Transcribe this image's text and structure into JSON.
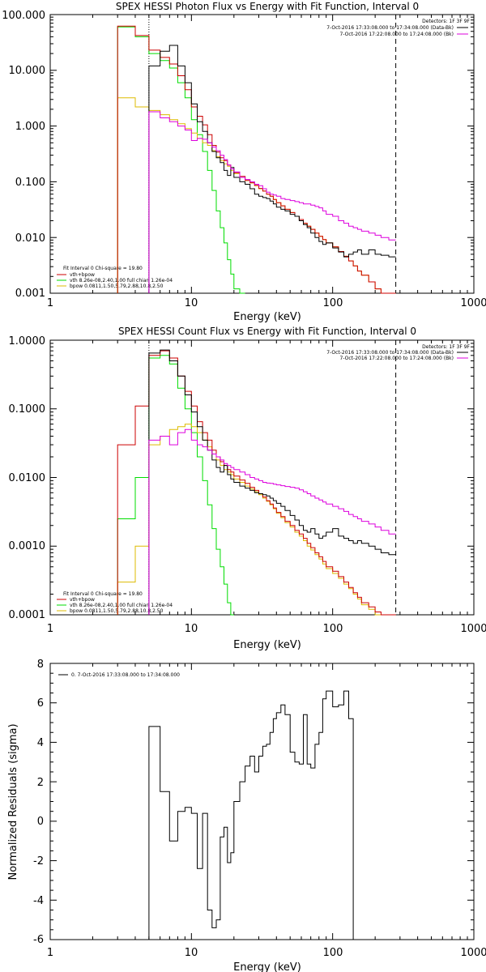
{
  "colors": {
    "total": "#cc0000",
    "vth": "#00dd00",
    "bpow": "#ddbb00",
    "data": "#000000",
    "bk": "#dd00dd",
    "frame": "#000000"
  },
  "chart_data": [
    {
      "type": "line",
      "title": "SPEX HESSI Photon Flux vs Energy with Fit Function, Interval 0",
      "xlabel": "Energy (keV)",
      "ylabel": "",
      "xscale": "log",
      "yscale": "log",
      "xlim": [
        1,
        1000
      ],
      "ylim": [
        0.001,
        100
      ],
      "xticks": [
        "1",
        "10",
        "100",
        "1000"
      ],
      "yticks": [
        "0.001",
        "0.010",
        "0.100",
        "1.000",
        "10.000",
        "100.000"
      ],
      "vlines": [
        {
          "x": 5,
          "style": "dotted"
        },
        {
          "x": 280,
          "style": "dashed"
        }
      ],
      "header_lines": [
        "Detectors: 1F 3F 9F",
        "7-Oct-2016 17:33:08.000 to 17:34:08.000 (Data-Bk)",
        "7-Oct-2016 17:22:08.000 to 17:24:08.000 (Bk)"
      ],
      "header_swatches": [
        "data",
        "bk"
      ],
      "legend": [
        "Fit Interval 0   Chi-square = 19.80",
        "vth+bpow",
        "vth 8.26e-08,2.40,1.00   full chian 1.26e-04",
        "bpow 0.0811,1.50,5.79,2.88,10.8,2.50"
      ],
      "legend_colors": [
        "none",
        "total",
        "vth",
        "bpow"
      ],
      "edges": [
        3,
        4,
        5,
        6,
        7,
        8,
        9,
        10,
        11,
        12,
        13,
        14,
        15,
        16,
        17,
        18,
        19,
        20,
        22,
        24,
        26,
        28,
        30,
        32,
        34,
        36,
        38,
        40,
        43,
        46,
        50,
        54,
        58,
        62,
        66,
        70,
        75,
        80,
        85,
        90,
        100,
        110,
        120,
        130,
        140,
        150,
        160,
        180,
        200,
        220,
        250,
        280
      ],
      "series": [
        {
          "key": "vth",
          "name": "vth",
          "xstart": 3,
          "values": [
            60,
            40,
            20,
            15,
            11,
            6,
            3.2,
            1.3,
            0.7,
            0.35,
            0.16,
            0.07,
            0.03,
            0.015,
            0.008,
            0.004,
            0.0022,
            0.0012,
            0.001
          ]
        },
        {
          "key": "bpow",
          "name": "bpow",
          "xstart": 3,
          "values": [
            3.2,
            2.2,
            1.9,
            1.6,
            1.3,
            1.1,
            0.9,
            0.75,
            0.6,
            0.5,
            0.45,
            0.36,
            0.28,
            0.24,
            0.21,
            0.19,
            0.16,
            0.14,
            0.12,
            0.105,
            0.095,
            0.085,
            0.075,
            0.068,
            0.06,
            0.055,
            0.048,
            0.042,
            0.037,
            0.032,
            0.028,
            0.024,
            0.021,
            0.018,
            0.016,
            0.014,
            0.012,
            0.0105,
            0.0092,
            0.008,
            0.0068,
            0.0056,
            0.0046,
            0.0038,
            0.0031,
            0.0025,
            0.0021,
            0.0016,
            0.0012,
            0.001,
            0.0009
          ]
        },
        {
          "key": "total",
          "name": "vth+bpow",
          "xstart": 3,
          "values": [
            62,
            42,
            23,
            17,
            13,
            8,
            4.5,
            2.2,
            1.5,
            1.05,
            0.7,
            0.45,
            0.34,
            0.27,
            0.24,
            0.2,
            0.17,
            0.145,
            0.125,
            0.106,
            0.096,
            0.086,
            0.076,
            0.068,
            0.06,
            0.055,
            0.048,
            0.042,
            0.037,
            0.032,
            0.028,
            0.024,
            0.021,
            0.018,
            0.016,
            0.014,
            0.012,
            0.0105,
            0.0092,
            0.008,
            0.0068,
            0.0056,
            0.0046,
            0.0038,
            0.0031,
            0.0025,
            0.0021,
            0.0016,
            0.0012,
            0.001,
            0.0009
          ]
        },
        {
          "key": "data",
          "name": "Data-Bk",
          "xstart": 5,
          "values": [
            12,
            22,
            28,
            12,
            6,
            2.5,
            1.2,
            0.8,
            0.5,
            0.35,
            0.27,
            0.22,
            0.16,
            0.13,
            0.18,
            0.12,
            0.1,
            0.09,
            0.075,
            0.06,
            0.055,
            0.052,
            0.05,
            0.045,
            0.04,
            0.035,
            0.032,
            0.03,
            0.026,
            0.024,
            0.02,
            0.017,
            0.015,
            0.012,
            0.01,
            0.0085,
            0.0075,
            0.008,
            0.0065,
            0.0055,
            0.0045,
            0.005,
            0.0055,
            0.006,
            0.005,
            0.006,
            0.005,
            0.0048,
            0.0045,
            0.004
          ]
        },
        {
          "key": "bk",
          "name": "Bk",
          "xstart": 5,
          "values": [
            1.8,
            1.4,
            1.2,
            1.0,
            0.85,
            0.55,
            0.6,
            0.58,
            0.5,
            0.42,
            0.36,
            0.3,
            0.25,
            0.2,
            0.17,
            0.15,
            0.12,
            0.11,
            0.1,
            0.09,
            0.085,
            0.075,
            0.065,
            0.06,
            0.058,
            0.055,
            0.05,
            0.048,
            0.046,
            0.044,
            0.042,
            0.04,
            0.04,
            0.038,
            0.036,
            0.034,
            0.03,
            0.026,
            0.024,
            0.02,
            0.018,
            0.016,
            0.015,
            0.014,
            0.013,
            0.012,
            0.011,
            0.01,
            0.009,
            0.008
          ]
        }
      ]
    },
    {
      "type": "line",
      "title": "SPEX HESSI Count Flux vs Energy with Fit Function, Interval 0",
      "xlabel": "Energy (keV)",
      "ylabel": "",
      "xscale": "log",
      "yscale": "log",
      "xlim": [
        1,
        1000
      ],
      "ylim": [
        0.0001,
        1
      ],
      "xticks": [
        "1",
        "10",
        "100",
        "1000"
      ],
      "yticks": [
        "0.0001",
        "0.0010",
        "0.0100",
        "0.1000",
        "1.0000"
      ],
      "vlines": [
        {
          "x": 5,
          "style": "dotted"
        },
        {
          "x": 280,
          "style": "dashed"
        }
      ],
      "header_lines": [
        "Detectors: 1F 3F 9F",
        "7-Oct-2016 17:33:08.000 to 17:34:08.000 (Data-Bk)",
        "7-Oct-2016 17:22:08.000 to 17:24:08.000 (Bk)"
      ],
      "header_swatches": [
        "data",
        "bk"
      ],
      "legend": [
        "Fit Interval 0   Chi-square = 19.80",
        "vth+bpow",
        "vth 8.26e-08,2.40,1.00   full chian 1.26e-04",
        "bpow 0.0811,1.50,5.79,2.88,10.8,2.50"
      ],
      "legend_colors": [
        "none",
        "total",
        "vth",
        "bpow"
      ],
      "edges": [
        3,
        4,
        5,
        6,
        7,
        8,
        9,
        10,
        11,
        12,
        13,
        14,
        15,
        16,
        17,
        18,
        19,
        20,
        22,
        24,
        26,
        28,
        30,
        32,
        34,
        36,
        38,
        40,
        43,
        46,
        50,
        54,
        58,
        62,
        66,
        70,
        75,
        80,
        85,
        90,
        100,
        110,
        120,
        130,
        140,
        150,
        160,
        180,
        200,
        220,
        250,
        280
      ],
      "series": [
        {
          "key": "vth",
          "name": "vth",
          "xstart": 3,
          "values": [
            0.0025,
            0.01,
            0.55,
            0.6,
            0.45,
            0.2,
            0.1,
            0.045,
            0.02,
            0.009,
            0.004,
            0.0018,
            0.0009,
            0.0005,
            0.00028,
            0.00015,
            0.0001
          ]
        },
        {
          "key": "bpow",
          "name": "bpow",
          "xstart": 3,
          "values": [
            0.0003,
            0.001,
            0.03,
            0.04,
            0.05,
            0.055,
            0.06,
            0.055,
            0.045,
            0.035,
            0.028,
            0.022,
            0.018,
            0.015,
            0.013,
            0.012,
            0.011,
            0.0095,
            0.0085,
            0.0075,
            0.0068,
            0.0062,
            0.0056,
            0.005,
            0.0045,
            0.004,
            0.0035,
            0.003,
            0.0026,
            0.0022,
            0.0019,
            0.0016,
            0.0014,
            0.0012,
            0.001,
            0.00088,
            0.00075,
            0.00065,
            0.00055,
            0.00047,
            0.0004,
            0.00034,
            0.00028,
            0.00024,
            0.0002,
            0.00017,
            0.00014,
            0.00012,
            0.0001,
            0.0001,
            0.0001
          ]
        },
        {
          "key": "total",
          "name": "vth+bpow",
          "xstart": 3,
          "values": [
            0.03,
            0.11,
            0.6,
            0.7,
            0.55,
            0.3,
            0.18,
            0.11,
            0.065,
            0.045,
            0.035,
            0.025,
            0.02,
            0.017,
            0.015,
            0.013,
            0.012,
            0.0105,
            0.0092,
            0.0082,
            0.0072,
            0.0065,
            0.0058,
            0.0052,
            0.0046,
            0.0041,
            0.0036,
            0.0031,
            0.0027,
            0.0023,
            0.002,
            0.0017,
            0.0015,
            0.0013,
            0.0011,
            0.00095,
            0.0008,
            0.0007,
            0.0006,
            0.0005,
            0.00043,
            0.00036,
            0.0003,
            0.00025,
            0.00021,
            0.00018,
            0.00015,
            0.00013,
            0.00011,
            0.0001,
            0.0001
          ]
        },
        {
          "key": "data",
          "name": "Data-Bk",
          "xstart": 5,
          "values": [
            0.65,
            0.72,
            0.5,
            0.3,
            0.16,
            0.09,
            0.055,
            0.035,
            0.025,
            0.018,
            0.014,
            0.012,
            0.015,
            0.011,
            0.0095,
            0.0085,
            0.0075,
            0.007,
            0.0065,
            0.006,
            0.0058,
            0.0056,
            0.0054,
            0.005,
            0.0046,
            0.0042,
            0.0038,
            0.0033,
            0.0028,
            0.0024,
            0.002,
            0.0017,
            0.0016,
            0.0018,
            0.0015,
            0.0013,
            0.0014,
            0.0016,
            0.0018,
            0.0014,
            0.0013,
            0.0012,
            0.0011,
            0.0012,
            0.0011,
            0.001,
            0.0009,
            0.0008,
            0.00075,
            0.0006
          ]
        },
        {
          "key": "bk",
          "name": "Bk",
          "xstart": 5,
          "values": [
            0.035,
            0.04,
            0.03,
            0.045,
            0.05,
            0.035,
            0.03,
            0.028,
            0.025,
            0.022,
            0.02,
            0.018,
            0.016,
            0.015,
            0.014,
            0.013,
            0.012,
            0.011,
            0.01,
            0.0095,
            0.009,
            0.0085,
            0.0083,
            0.0082,
            0.008,
            0.0078,
            0.0076,
            0.0074,
            0.0072,
            0.007,
            0.0066,
            0.0062,
            0.0058,
            0.0054,
            0.005,
            0.0047,
            0.0044,
            0.0041,
            0.0038,
            0.0035,
            0.0032,
            0.0029,
            0.0027,
            0.0025,
            0.0023,
            0.0021,
            0.0019,
            0.0017,
            0.0015,
            0.0013
          ]
        }
      ]
    },
    {
      "type": "line",
      "title": "",
      "xlabel": "Energy (keV)",
      "ylabel": "Normalized Residuals (sigma)",
      "xscale": "log",
      "yscale": "linear",
      "xlim": [
        1,
        1000
      ],
      "ylim": [
        -6,
        8
      ],
      "xticks": [
        "1",
        "10",
        "100",
        "1000"
      ],
      "yticks": [
        "-6",
        "-4",
        "-2",
        "0",
        "2",
        "4",
        "6",
        "8"
      ],
      "legend": [
        "0.  7-Oct-2016 17:33:08.000 to 17:34:08.000"
      ],
      "legend_colors": [
        "data"
      ],
      "edges": [
        5,
        6,
        7,
        8,
        9,
        10,
        11,
        12,
        13,
        14,
        15,
        16,
        17,
        18,
        19,
        20,
        22,
        24,
        26,
        28,
        30,
        32,
        34,
        36,
        38,
        40,
        43,
        46,
        50,
        54,
        58,
        62,
        66,
        70,
        75,
        80,
        85,
        90,
        100,
        110,
        120,
        130,
        140,
        150,
        160,
        180,
        200,
        220,
        250,
        280
      ],
      "series": [
        {
          "key": "data",
          "name": "residuals",
          "xstart": 5,
          "values": [
            4.8,
            1.5,
            -1.0,
            0.5,
            0.7,
            0.4,
            -2.4,
            0.4,
            -4.5,
            -5.4,
            -5.0,
            -0.8,
            -0.3,
            -2.1,
            -1.6,
            1.0,
            2.0,
            2.8,
            3.3,
            2.5,
            3.3,
            3.8,
            3.9,
            4.5,
            5.2,
            5.5,
            5.9,
            5.4,
            3.5,
            3.0,
            2.9,
            5.4,
            2.9,
            2.7,
            3.9,
            4.5,
            6.2,
            6.6,
            5.8,
            5.9,
            6.6,
            5.2
          ]
        }
      ]
    }
  ]
}
